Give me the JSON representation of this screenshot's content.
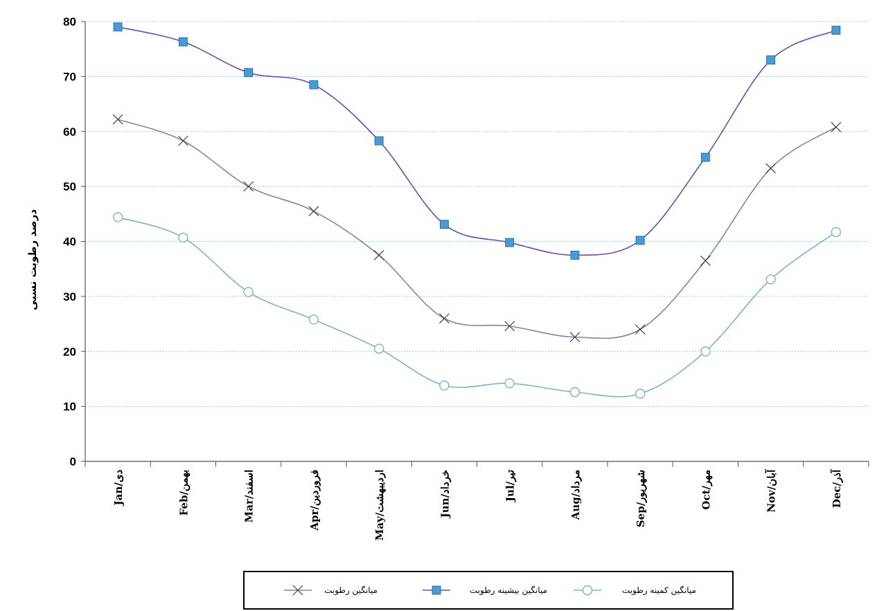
{
  "chart_data": {
    "type": "line",
    "ylabel": "درصد رطوبت نسبی",
    "ylim": [
      0,
      80
    ],
    "yticks": [
      0,
      10,
      20,
      30,
      40,
      50,
      60,
      70,
      80
    ],
    "categories": [
      "Jan/دی",
      "Feb/بهمن",
      "Mar/اسفند",
      "Apr/فروردین",
      "May/اردیبهشت",
      "Jun/خرداد",
      "Jul/تیر",
      "Aug/مرداد",
      "Sep/شهریور",
      "Oct/مهر",
      "Nov/آبان",
      "Dec/آذر"
    ],
    "grid": true,
    "legend_position": "bottom",
    "series": [
      {
        "name": "میانگین رطوبت",
        "marker": "x",
        "color": "#8a8296",
        "values": [
          62.2,
          58.3,
          50.0,
          45.5,
          37.5,
          26.0,
          24.6,
          22.6,
          24.0,
          36.5,
          53.3,
          60.8
        ]
      },
      {
        "name": "میانگین بیشینه رطوبت",
        "marker": "square",
        "color": "#5a4fc4",
        "marker_color": "#4a9ad6",
        "values": [
          79.0,
          76.3,
          70.7,
          68.5,
          58.3,
          43.1,
          39.8,
          37.5,
          40.2,
          55.3,
          73.0,
          78.4
        ]
      },
      {
        "name": "میانگین کمینه رطوبت",
        "marker": "circle",
        "color": "#7ab4c8",
        "values": [
          44.4,
          40.7,
          30.8,
          25.8,
          20.5,
          13.8,
          14.2,
          12.6,
          12.3,
          20.0,
          33.1,
          41.7
        ]
      }
    ]
  }
}
